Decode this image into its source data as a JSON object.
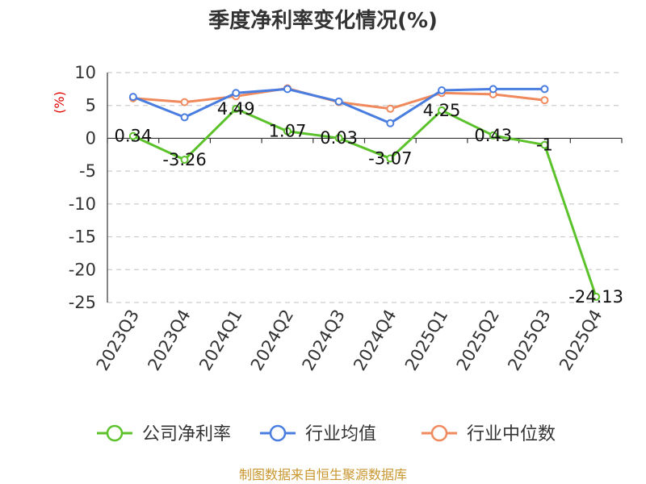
{
  "chart_data": {
    "type": "line",
    "title": "季度净利率变化情况(%)",
    "unit_label": "(%)",
    "categories": [
      "2023Q3",
      "2023Q4",
      "2024Q1",
      "2024Q2",
      "2024Q3",
      "2024Q4",
      "2025Q1",
      "2025Q2",
      "2025Q3",
      "2025Q4"
    ],
    "ylim": [
      -25,
      10
    ],
    "yticks": [
      10,
      5,
      0,
      -5,
      -10,
      -15,
      -20,
      -25
    ],
    "grid": true,
    "legend_position": "bottom",
    "series": [
      {
        "name": "公司净利率",
        "color": "#5cc22c",
        "values": [
          0.34,
          -3.26,
          4.49,
          1.07,
          0.03,
          -3.07,
          4.25,
          0.43,
          -1,
          -24.13
        ],
        "labels": [
          "0.34",
          "-3.26",
          "4.49",
          "1.07",
          "0.03",
          "-3.07",
          "4.25",
          "0.43",
          "-1",
          "-24.13"
        ]
      },
      {
        "name": "行业均值",
        "color": "#4a7de0",
        "values": [
          6.3,
          3.2,
          6.9,
          7.5,
          5.6,
          2.3,
          7.3,
          7.5,
          7.5,
          null
        ]
      },
      {
        "name": "行业中位数",
        "color": "#f08a5d",
        "values": [
          6.1,
          5.5,
          6.4,
          7.6,
          5.5,
          4.5,
          6.9,
          6.7,
          5.8,
          null
        ]
      }
    ],
    "source": "制图数据来自恒生聚源数据库"
  }
}
